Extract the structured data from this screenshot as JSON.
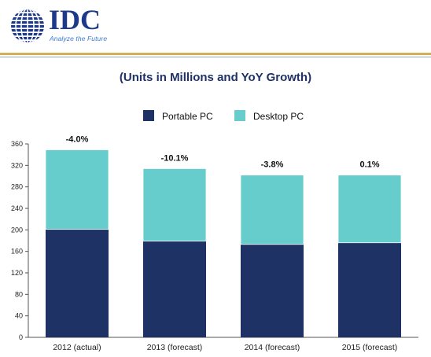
{
  "brand": {
    "name": "IDC",
    "tagline": "Analyze the Future"
  },
  "colors": {
    "portable": "#1f3266",
    "desktop": "#66cdcc",
    "logo_blue": "#1d3a8a",
    "accent_gold": "#d2ae54"
  },
  "chart_data": {
    "type": "bar",
    "stacked": true,
    "title": "(Units in Millions and YoY Growth)",
    "xlabel": "",
    "ylabel": "",
    "categories": [
      "2012 (actual)",
      "2013 (forecast)",
      "2014 (forecast)",
      "2015 (forecast)"
    ],
    "series": [
      {
        "name": "Portable PC",
        "color": "#1f3266",
        "values": [
          201,
          179,
          173,
          176
        ]
      },
      {
        "name": "Desktop PC",
        "color": "#66cdcc",
        "values": [
          148,
          135,
          129,
          126
        ]
      }
    ],
    "totals": [
      349,
      314,
      302,
      302
    ],
    "growth_labels": [
      "-4.0%",
      "-10.1%",
      "-3.8%",
      "0.1%"
    ],
    "ylim": [
      0,
      360
    ],
    "yticks": [
      0,
      40,
      80,
      120,
      160,
      200,
      240,
      280,
      320,
      360
    ],
    "grid": false,
    "legend_position": "top"
  }
}
